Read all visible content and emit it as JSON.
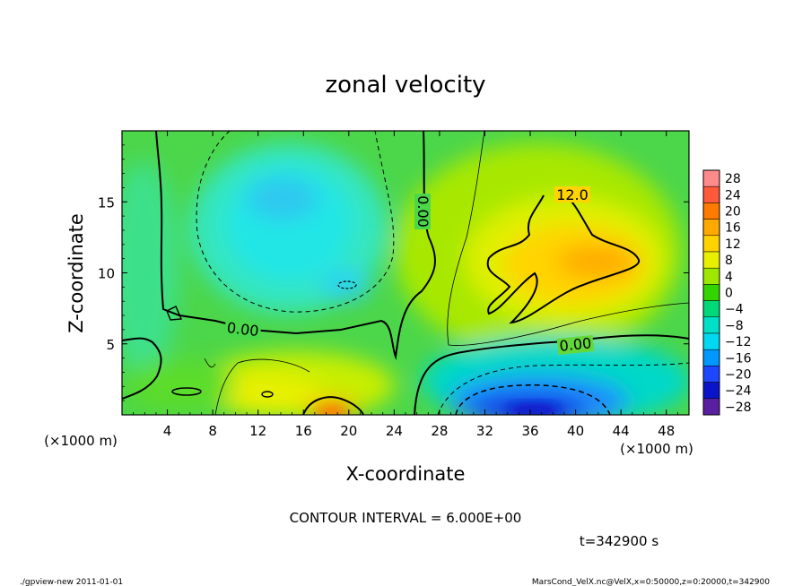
{
  "chart_data": {
    "type": "heatmap",
    "title": "zonal velocity",
    "xlabel": "X-coordinate",
    "ylabel": "Z-coordinate",
    "x_unit_label": "(×1000 m)",
    "y_unit_label": "(×1000 m)",
    "xlim": [
      0,
      50
    ],
    "ylim": [
      0,
      20
    ],
    "x_ticks": [
      4,
      8,
      12,
      16,
      20,
      24,
      28,
      32,
      36,
      40,
      44,
      48
    ],
    "y_ticks": [
      5,
      10,
      15
    ],
    "colorbar": {
      "levels": [
        28,
        24,
        20,
        16,
        12,
        8,
        4,
        0,
        -4,
        -8,
        -12,
        -16,
        -20,
        -24,
        -28
      ],
      "colors": [
        "#ff8a8a",
        "#ff5a3c",
        "#ff7a00",
        "#ffa800",
        "#ffd200",
        "#e8f000",
        "#9ee800",
        "#34d400",
        "#00d87a",
        "#00e0c8",
        "#00d8f0",
        "#0098ff",
        "#1e46ff",
        "#0a14c8",
        "#5a1ea0"
      ]
    },
    "contour_labels": [
      {
        "text": "12.0",
        "x": 39,
        "z": 15.5
      },
      {
        "text": "0.00",
        "x": 26.5,
        "z": 14.5
      },
      {
        "text": "0.00",
        "x": 10.5,
        "z": 6.0
      },
      {
        "text": "0.00",
        "x": 38.5,
        "z": 4.5
      }
    ],
    "features": [
      {
        "name": "negative-core-upper-left",
        "x": 14,
        "z": 15,
        "value": -12
      },
      {
        "name": "negative-core-bottom-right",
        "x": 38,
        "z": 1,
        "value": -24
      },
      {
        "name": "positive-core-upper-right",
        "x": 40,
        "z": 10.5,
        "value": 16
      },
      {
        "name": "positive-core-bottom-center",
        "x": 19,
        "z": 0.5,
        "value": 16
      }
    ]
  },
  "footer": {
    "contour_interval": "CONTOUR INTERVAL = 6.000E+00",
    "time": "t=342900 s",
    "program": "./gpview-new  2011-01-01",
    "source": "MarsCond_VelX.nc@VelX,x=0:50000,z=0:20000,t=342900"
  }
}
